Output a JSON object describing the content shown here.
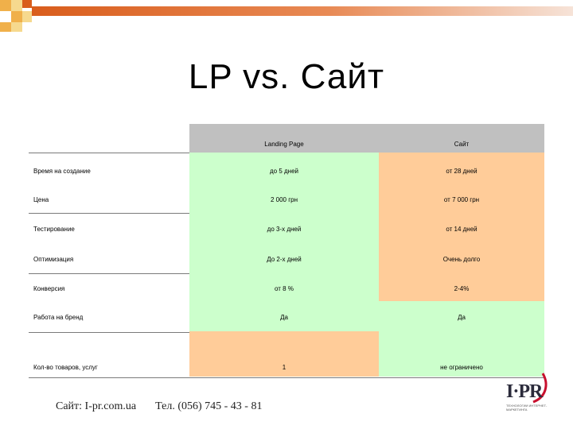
{
  "slide": {
    "title": "LP vs. Сайт"
  },
  "table": {
    "headers": [
      "",
      "Landing Page",
      "Сайт"
    ],
    "rows": [
      {
        "label": "Время на создание",
        "lp": "до 5 дней",
        "site": "от 28 дней"
      },
      {
        "label": "Цена",
        "lp": "2 000 грн",
        "site": "от 7 000 грн"
      },
      {
        "label": "Тестирование",
        "lp": "до 3-х дней",
        "site": "от 14 дней"
      },
      {
        "label": "Оптимизация",
        "lp": "До 2-х дней",
        "site": "Очень долго"
      },
      {
        "label": "Конверсия",
        "lp": "от 8 %",
        "site": "2-4%"
      },
      {
        "label": "Работа на бренд",
        "lp": "Да",
        "site": "Да"
      },
      {
        "label": "Кол-во товаров, услуг",
        "lp": "1",
        "site": "не ограничено"
      }
    ]
  },
  "footer": {
    "site": "Сайт: I-pr.com.ua",
    "phone": "Тел. (056) 745 - 43 - 81"
  },
  "logo": {
    "text": "I·PR",
    "subtitle": "ТЕХНОЛОГИИ ИНТЕРНЕТ-МАРКЕТИНГА"
  },
  "colors": {
    "accent": "#d95d1c",
    "header_gray": "#c0c0c0",
    "lp_green": "#ccffcc",
    "site_orange": "#ffcc99"
  }
}
